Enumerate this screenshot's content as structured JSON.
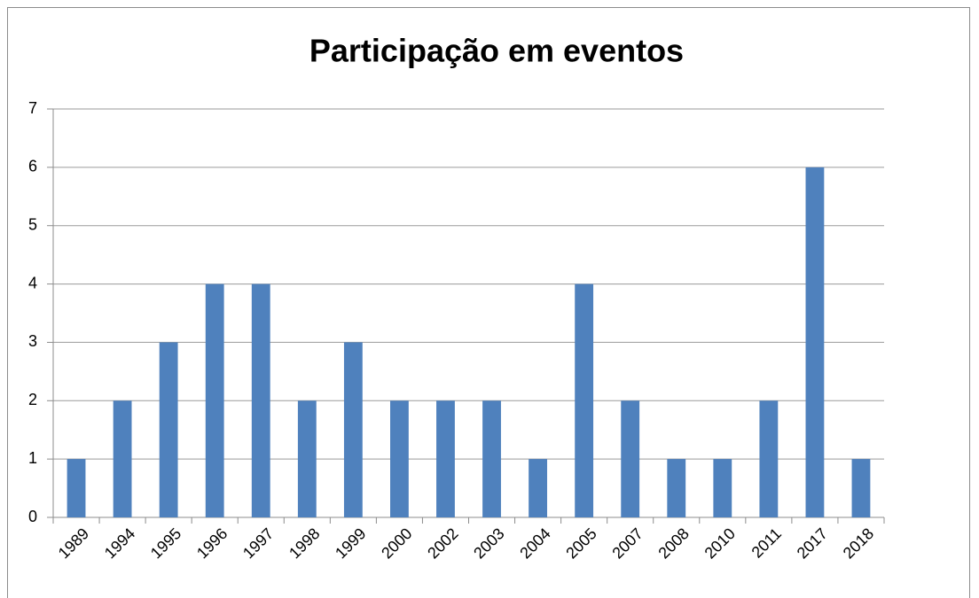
{
  "chart_data": {
    "type": "bar",
    "title": "Participação em eventos",
    "categories": [
      "1989",
      "1994",
      "1995",
      "1996",
      "1997",
      "1998",
      "1999",
      "2000",
      "2002",
      "2003",
      "2004",
      "2005",
      "2007",
      "2008",
      "2010",
      "2011",
      "2017",
      "2018"
    ],
    "values": [
      1,
      2,
      3,
      4,
      4,
      2,
      3,
      2,
      2,
      2,
      1,
      4,
      2,
      1,
      1,
      2,
      6,
      1
    ],
    "color": "#4f81bd",
    "ylim": [
      0,
      7
    ],
    "yticks": [
      0,
      1,
      2,
      3,
      4,
      5,
      6,
      7
    ],
    "grid": true
  }
}
